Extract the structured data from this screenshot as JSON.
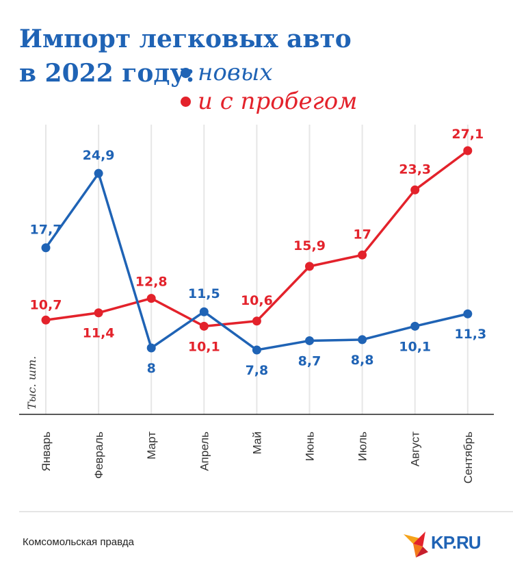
{
  "title": {
    "line1": "Импорт легковых авто",
    "line2": "в 2022 году:"
  },
  "legend": [
    {
      "label": "новых",
      "color": "#1f63b5"
    },
    {
      "label": "и с пробегом",
      "color": "#e3222b"
    }
  ],
  "source": "Комсомольская правда",
  "logo_text": "KP.RU",
  "colors": {
    "new": "#1f63b5",
    "used": "#e3222b",
    "grid": "#e6e6e6",
    "axis": "#222222"
  },
  "chart_data": {
    "type": "line",
    "categories": [
      "Январь",
      "Февраль",
      "Март",
      "Апрель",
      "Май",
      "Июнь",
      "Июль",
      "Август",
      "Сентябрь"
    ],
    "ylabel": "Тыс. шт.",
    "ylim": [
      0,
      30
    ],
    "grid": "vertical",
    "series": [
      {
        "name": "новых",
        "color": "#1f63b5",
        "values": [
          17.7,
          24.9,
          8,
          11.5,
          7.8,
          8.7,
          8.8,
          10.1,
          11.3
        ],
        "labels": [
          "17,7",
          "24,9",
          "8",
          "11,5",
          "7,8",
          "8,7",
          "8,8",
          "10,1",
          "11,3"
        ]
      },
      {
        "name": "и с пробегом",
        "color": "#e3222b",
        "values": [
          10.7,
          11.4,
          12.8,
          10.1,
          10.6,
          15.9,
          17,
          23.3,
          27.1
        ],
        "labels": [
          "10,7",
          "11,4",
          "12,8",
          "10,1",
          "10,6",
          "15,9",
          "17",
          "23,3",
          "27,1"
        ]
      }
    ]
  }
}
